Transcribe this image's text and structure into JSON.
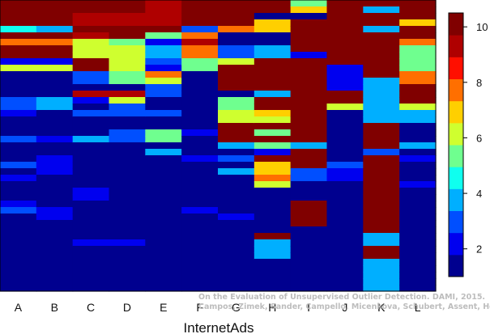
{
  "chart_data": {
    "type": "heatmap",
    "title": "",
    "xlabel": "InternetAds",
    "ylabel": "",
    "columns": [
      "A",
      "B",
      "C",
      "D",
      "E",
      "F",
      "G",
      "H",
      "I",
      "J",
      "K",
      "L"
    ],
    "colorbar": {
      "min": 1,
      "max": 10.5,
      "ticks": [
        2,
        4,
        6,
        8,
        10
      ],
      "colors": [
        "#00008f",
        "#0000ef",
        "#004fff",
        "#00afff",
        "#0fffef",
        "#6fff8f",
        "#cfff2f",
        "#ffcf00",
        "#ff6f00",
        "#ff0f00",
        "#af0000",
        "#800000"
      ]
    },
    "series": [
      {
        "name": "A",
        "values": [
          10,
          10,
          10,
          10,
          4.5,
          10,
          8,
          10,
          10,
          2,
          6,
          1,
          1,
          1,
          1,
          3,
          3,
          2,
          1,
          1,
          1,
          3,
          1,
          1,
          1,
          3,
          1,
          2,
          1,
          1,
          1,
          2,
          3,
          1,
          1,
          1,
          1,
          1,
          1,
          1,
          1,
          1,
          1,
          1,
          1
        ]
      },
      {
        "name": "B",
        "values": [
          10,
          10,
          10,
          10,
          3.5,
          10,
          8,
          10,
          10,
          2,
          6,
          1,
          1,
          1,
          1,
          4,
          4,
          1,
          1,
          1,
          1,
          2,
          1,
          1,
          2,
          2,
          2,
          1,
          1,
          1,
          1,
          1,
          2,
          2,
          1,
          1,
          1,
          1,
          1,
          1,
          1,
          1,
          1,
          1,
          1
        ]
      },
      {
        "name": "C",
        "values": [
          10,
          10,
          9.5,
          9.5,
          10,
          9,
          6,
          6.5,
          6.5,
          10,
          10,
          3,
          3,
          1.5,
          9,
          2,
          1,
          3,
          1,
          1,
          1,
          4,
          1,
          1,
          1,
          1,
          1,
          1,
          1,
          2,
          2,
          1,
          1,
          1,
          1,
          1,
          1,
          2,
          1,
          1,
          1,
          1,
          1,
          1,
          1
        ]
      },
      {
        "name": "D",
        "values": [
          10,
          10,
          9.5,
          9.5,
          10,
          10,
          5,
          6.5,
          6.5,
          6,
          6,
          5,
          5,
          1.5,
          9,
          6,
          3,
          3,
          1,
          1,
          3,
          3,
          1,
          1,
          1,
          1,
          1,
          1,
          1,
          1,
          1,
          1,
          1,
          1,
          1,
          1,
          1,
          2,
          1,
          1,
          1,
          1,
          1,
          1,
          1
        ]
      },
      {
        "name": "E",
        "values": [
          9,
          9,
          9,
          9,
          10,
          5,
          2,
          4,
          4,
          3,
          2,
          8,
          6,
          3,
          3,
          1,
          1,
          3,
          1,
          1,
          5,
          5,
          1,
          4,
          1,
          1,
          1,
          1,
          1,
          1,
          1,
          1,
          1,
          1,
          1,
          1,
          1,
          1,
          1,
          1,
          1,
          1,
          1,
          1,
          1
        ]
      },
      {
        "name": "F",
        "values": [
          10,
          10,
          10,
          10,
          3,
          8,
          9,
          7.5,
          7.5,
          5,
          5,
          1,
          1,
          1,
          1,
          1,
          1,
          1,
          1,
          1,
          2,
          1,
          1,
          1,
          2,
          1,
          1,
          1,
          1,
          1,
          1,
          1,
          2,
          1,
          1,
          1,
          1,
          1,
          1,
          1,
          1,
          1,
          1,
          1,
          1
        ]
      },
      {
        "name": "G",
        "values": [
          10,
          10,
          10,
          10,
          8,
          1,
          1,
          3,
          3,
          6,
          10,
          10,
          10,
          10,
          1,
          5,
          5,
          6,
          6,
          10,
          10,
          10,
          4,
          1,
          3,
          1,
          4,
          1,
          1,
          1,
          1,
          1,
          1,
          2,
          1,
          1,
          1,
          1,
          1,
          1,
          1,
          1,
          1,
          1,
          1
        ]
      },
      {
        "name": "H",
        "values": [
          10,
          10,
          1,
          7,
          7,
          1,
          1,
          4,
          4,
          10,
          10,
          10,
          10,
          10,
          4,
          10,
          10,
          7,
          6,
          10,
          5,
          10,
          5,
          2,
          10,
          7,
          7,
          8,
          6,
          1,
          1,
          1,
          1,
          1,
          1,
          1,
          10,
          4,
          4,
          4,
          1,
          1,
          1,
          1,
          1
        ]
      },
      {
        "name": "I",
        "values": [
          5,
          7,
          1,
          10,
          10,
          10,
          10,
          10,
          2,
          10,
          10,
          10,
          10,
          10,
          10,
          10,
          10,
          10,
          10,
          10,
          10,
          10,
          4,
          10,
          10,
          10,
          3,
          3,
          1,
          1,
          1,
          10,
          10,
          10,
          10,
          1,
          1,
          1,
          1,
          1,
          1,
          1,
          1,
          1,
          1
        ]
      },
      {
        "name": "J",
        "values": [
          10,
          10,
          10,
          10,
          10,
          10,
          10,
          10,
          10,
          10,
          2,
          2,
          2,
          2,
          10,
          10,
          6,
          1,
          1,
          1,
          1,
          1,
          1,
          1,
          1,
          3,
          2,
          2,
          1,
          1,
          1,
          1,
          1,
          1,
          1,
          1,
          1,
          1,
          1,
          1,
          1,
          1,
          1,
          1,
          1
        ]
      },
      {
        "name": "K",
        "values": [
          10,
          4,
          10,
          10,
          4,
          10,
          10,
          10,
          10,
          10,
          10,
          10,
          4,
          4,
          4,
          4,
          4,
          4,
          4,
          10,
          10,
          10,
          10,
          3,
          10,
          10,
          10,
          10,
          10,
          10,
          10,
          10,
          10,
          10,
          10,
          10,
          4,
          4,
          10,
          10,
          4,
          4,
          4,
          4,
          4
        ]
      },
      {
        "name": "L",
        "values": [
          10,
          10,
          10,
          7,
          10,
          10,
          8,
          5,
          5,
          5,
          5,
          8,
          8,
          10,
          10,
          10,
          6,
          4,
          4,
          1,
          1,
          1,
          4,
          1,
          2,
          1,
          1,
          1,
          2,
          1,
          1,
          1,
          1,
          1,
          1,
          1,
          1,
          1,
          1,
          1,
          1,
          1,
          1,
          1,
          1
        ]
      }
    ]
  },
  "credit": {
    "line1": "On the Evaluation of Unsupervised Outlier Detection. DAMI, 2015.",
    "line2": "Campos, Zimek, Sander, Campello, Micenkova, Schubert, Assent, Houle"
  }
}
